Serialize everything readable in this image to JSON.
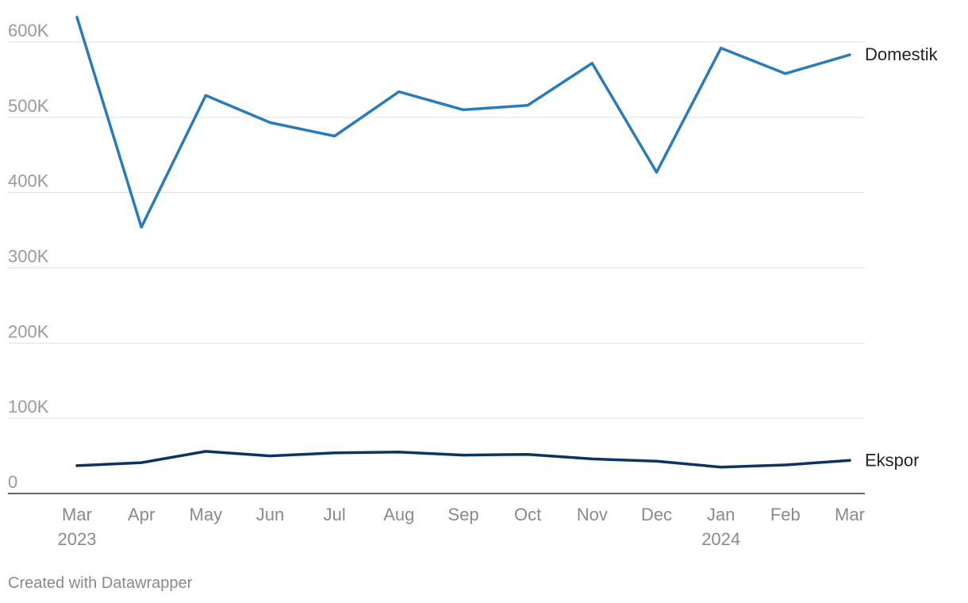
{
  "chart_data": {
    "type": "line",
    "x": [
      "Mar 2023",
      "Apr 2023",
      "May 2023",
      "Jun 2023",
      "Jul 2023",
      "Aug 2023",
      "Sep 2023",
      "Oct 2023",
      "Nov 2023",
      "Dec 2023",
      "Jan 2024",
      "Feb 2024",
      "Mar 2024"
    ],
    "x_tick_labels": [
      {
        "line1": "Mar",
        "line2": "2023"
      },
      {
        "line1": "Apr",
        "line2": ""
      },
      {
        "line1": "May",
        "line2": ""
      },
      {
        "line1": "Jun",
        "line2": ""
      },
      {
        "line1": "Jul",
        "line2": ""
      },
      {
        "line1": "Aug",
        "line2": ""
      },
      {
        "line1": "Sep",
        "line2": ""
      },
      {
        "line1": "Oct",
        "line2": ""
      },
      {
        "line1": "Nov",
        "line2": ""
      },
      {
        "line1": "Dec",
        "line2": ""
      },
      {
        "line1": "Jan",
        "line2": "2024"
      },
      {
        "line1": "Feb",
        "line2": ""
      },
      {
        "line1": "Mar",
        "line2": ""
      }
    ],
    "series": [
      {
        "name": "Domestik",
        "color": "#2b7bb9",
        "values": [
          633000,
          354000,
          529000,
          493000,
          475000,
          534000,
          510000,
          516000,
          572000,
          427000,
          592000,
          558000,
          583000
        ]
      },
      {
        "name": "Ekspor",
        "color": "#0b3561",
        "values": [
          37000,
          41000,
          56000,
          50000,
          54000,
          55000,
          51000,
          52000,
          46000,
          43000,
          35000,
          38000,
          44000
        ]
      }
    ],
    "ylim": [
      0,
      600000
    ],
    "y_ticks": [
      {
        "value": 0,
        "label": "0"
      },
      {
        "value": 100000,
        "label": "100K"
      },
      {
        "value": 200000,
        "label": "200K"
      },
      {
        "value": 300000,
        "label": "300K"
      },
      {
        "value": 400000,
        "label": "400K"
      },
      {
        "value": 500000,
        "label": "500K"
      },
      {
        "value": 600000,
        "label": "600K"
      }
    ],
    "grid": true,
    "legend": "direct-labels-right",
    "title": "",
    "xlabel": "",
    "ylabel": ""
  },
  "footer": {
    "credit": "Created with Datawrapper"
  }
}
